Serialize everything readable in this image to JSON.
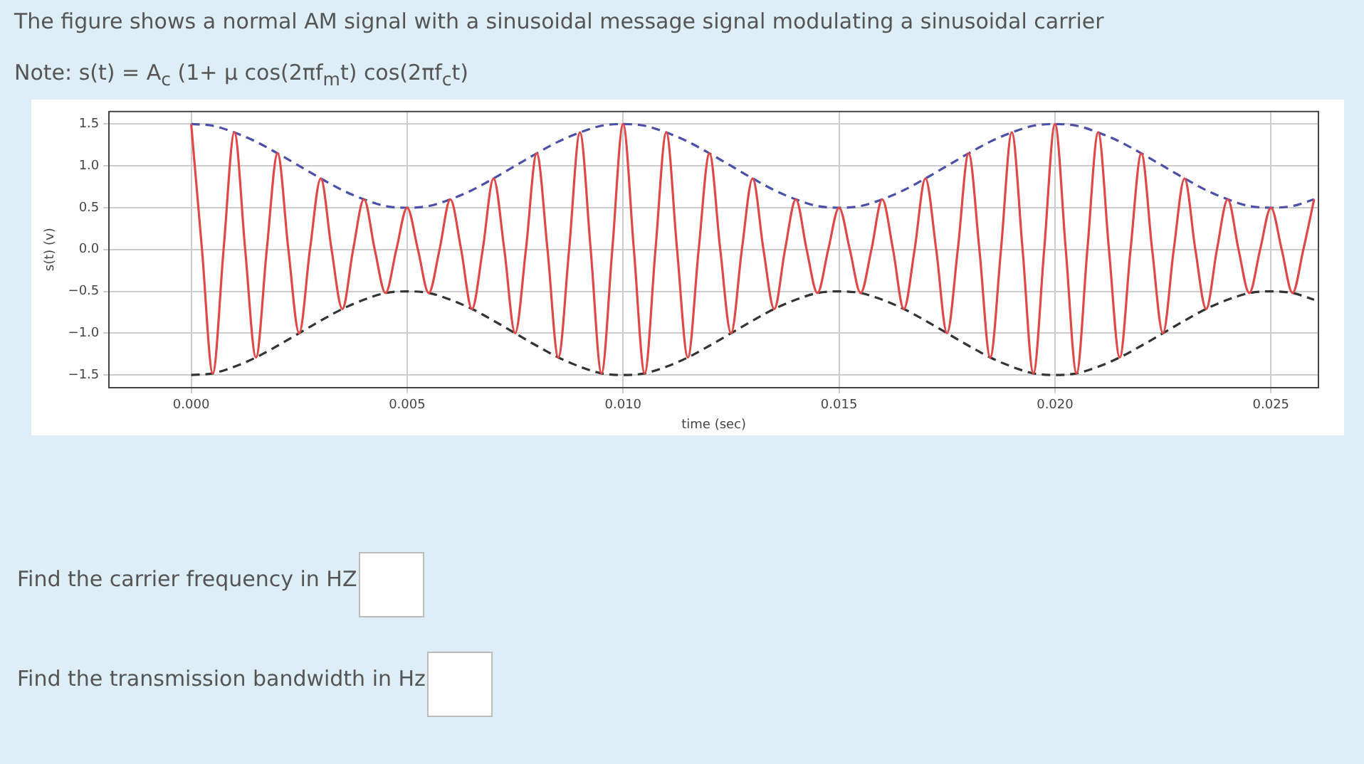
{
  "chart_data": {
    "type": "line",
    "title": "The figure shows a normal AM signal  with a sinusoidal message signal modulating a sinusoidal carrier",
    "subtitle": "Note: s(t) = A$_{c}$ (1+ μ cos(2πf$_{m}$t) cos(2πf$_{c}$t)",
    "xlabel": "time (sec)",
    "ylabel": "s(t) (v)",
    "annotations": [
      "Find the carrier frequency in HZ",
      "Find the transmission bandwidth in Hz"
    ],
    "x": [
      0,
      0.00025,
      0.0005,
      0.00075,
      0.001,
      0.00125,
      0.0015,
      0.00175,
      0.002,
      0.00225,
      0.0025,
      0.00275,
      0.003,
      0.00325,
      0.0035,
      0.00375,
      0.004,
      0.00425,
      0.0045,
      0.00475,
      0.005,
      0.00525,
      0.0055,
      0.00575,
      0.006,
      0.00625,
      0.0065,
      0.00675,
      0.007,
      0.00725,
      0.0075,
      0.00775,
      0.008,
      0.00825,
      0.0085,
      0.00875,
      0.009,
      0.00925,
      0.0095,
      0.00975,
      0.01,
      0.01025,
      0.0105,
      0.01075,
      0.011,
      0.01125,
      0.0115,
      0.01175,
      0.012,
      0.01225,
      0.0125,
      0.01275,
      0.013,
      0.01325,
      0.0135,
      0.01375,
      0.014,
      0.01425,
      0.0145,
      0.01475,
      0.015,
      0.01525,
      0.0155,
      0.01575,
      0.016,
      0.01625,
      0.0165,
      0.01675,
      0.017,
      0.01725,
      0.0175,
      0.01775,
      0.018,
      0.01825,
      0.0185,
      0.01875,
      0.019,
      0.01925,
      0.0195,
      0.01975,
      0.02,
      0.02025,
      0.0205,
      0.02075,
      0.021,
      0.02125,
      0.0215,
      0.02175,
      0.022,
      0.02225,
      0.0225,
      0.02275,
      0.023,
      0.02325,
      0.0235,
      0.02375,
      0.024,
      0.02425,
      0.0245,
      0.02475,
      0.025,
      0.02525,
      0.0255,
      0.02575,
      0.026
    ],
    "series": [
      {
        "color": "#e04848",
        "line_style": "solid",
        "values": [
          1.5,
          0,
          -1.48,
          0,
          1.4,
          0,
          -1.29,
          0,
          1.15,
          0,
          -1,
          0,
          0.85,
          0,
          -0.71,
          0,
          0.6,
          0,
          -0.52,
          0,
          0.5,
          0,
          -0.52,
          0,
          0.6,
          0,
          -0.71,
          0,
          0.85,
          0,
          -1,
          0,
          1.15,
          0,
          -1.29,
          0,
          1.4,
          0,
          -1.48,
          0,
          1.5,
          0,
          -1.48,
          0,
          1.4,
          0,
          -1.29,
          0,
          1.15,
          0,
          -1,
          0,
          0.85,
          0,
          -0.71,
          0,
          0.6,
          0,
          -0.52,
          0,
          0.5,
          0,
          -0.52,
          0,
          0.6,
          0,
          -0.71,
          0,
          0.85,
          0,
          -1,
          0,
          1.15,
          0,
          -1.29,
          0,
          1.4,
          0,
          -1.48,
          0,
          1.5,
          0,
          -1.48,
          0,
          1.4,
          0,
          -1.29,
          0,
          1.15,
          0,
          -1,
          0,
          0.85,
          0,
          -0.71,
          0,
          0.6,
          0,
          -0.52,
          0,
          0.5,
          0,
          -0.52,
          0,
          0.6
        ]
      },
      {
        "color": "#4b4fa8",
        "line_style": "dashed",
        "x": [
          0,
          0.0005,
          0.001,
          0.0015,
          0.002,
          0.0025,
          0.003,
          0.0035,
          0.004,
          0.0045,
          0.005,
          0.0055,
          0.006,
          0.0065,
          0.007,
          0.0075,
          0.008,
          0.0085,
          0.009,
          0.0095,
          0.01,
          0.0105,
          0.011,
          0.0115,
          0.012,
          0.0125,
          0.013,
          0.0135,
          0.014,
          0.0145,
          0.015,
          0.0155,
          0.016,
          0.0165,
          0.017,
          0.0175,
          0.018,
          0.0185,
          0.019,
          0.0195,
          0.02,
          0.0205,
          0.021,
          0.0215,
          0.022,
          0.0225,
          0.023,
          0.0235,
          0.024,
          0.0245,
          0.025,
          0.0255,
          0.026
        ],
        "values": [
          1.5,
          1.48,
          1.4,
          1.29,
          1.15,
          1,
          0.85,
          0.71,
          0.6,
          0.52,
          0.5,
          0.52,
          0.6,
          0.71,
          0.85,
          1,
          1.15,
          1.29,
          1.4,
          1.48,
          1.5,
          1.48,
          1.4,
          1.29,
          1.15,
          1,
          0.85,
          0.71,
          0.6,
          0.52,
          0.5,
          0.52,
          0.6,
          0.71,
          0.85,
          1,
          1.15,
          1.29,
          1.4,
          1.48,
          1.5,
          1.48,
          1.4,
          1.29,
          1.15,
          1,
          0.85,
          0.71,
          0.6,
          0.52,
          0.5,
          0.52,
          0.6
        ]
      },
      {
        "color": "#333333",
        "line_style": "dashed",
        "x": [
          0,
          0.0005,
          0.001,
          0.0015,
          0.002,
          0.0025,
          0.003,
          0.0035,
          0.004,
          0.0045,
          0.005,
          0.0055,
          0.006,
          0.0065,
          0.007,
          0.0075,
          0.008,
          0.0085,
          0.009,
          0.0095,
          0.01,
          0.0105,
          0.011,
          0.0115,
          0.012,
          0.0125,
          0.013,
          0.0135,
          0.014,
          0.0145,
          0.015,
          0.0155,
          0.016,
          0.0165,
          0.017,
          0.0175,
          0.018,
          0.0185,
          0.019,
          0.0195,
          0.02,
          0.0205,
          0.021,
          0.0215,
          0.022,
          0.0225,
          0.023,
          0.0235,
          0.024,
          0.0245,
          0.025,
          0.0255,
          0.026
        ],
        "values": [
          -1.5,
          -1.48,
          -1.4,
          -1.29,
          -1.15,
          -1,
          -0.85,
          -0.71,
          -0.6,
          -0.52,
          -0.5,
          -0.52,
          -0.6,
          -0.71,
          -0.85,
          -1,
          -1.15,
          -1.29,
          -1.4,
          -1.48,
          -1.5,
          -1.48,
          -1.4,
          -1.29,
          -1.15,
          -1,
          -0.85,
          -0.71,
          -0.6,
          -0.52,
          -0.5,
          -0.52,
          -0.6,
          -0.71,
          -0.85,
          -1,
          -1.15,
          -1.29,
          -1.4,
          -1.48,
          -1.5,
          -1.48,
          -1.4,
          -1.29,
          -1.15,
          -1,
          -0.85,
          -0.71,
          -0.6,
          -0.52,
          -0.5,
          -0.52,
          -0.6
        ]
      }
    ],
    "xlim": [
      -0.0019,
      0.0261
    ],
    "xticks": [
      {
        "value": 0,
        "label": "0.000"
      },
      {
        "value": 0.005,
        "label": "0.005"
      },
      {
        "value": 0.01,
        "label": "0.010"
      },
      {
        "value": 0.015,
        "label": "0.015"
      },
      {
        "value": 0.02,
        "label": "0.020"
      },
      {
        "value": 0.025,
        "label": "0.025"
      }
    ],
    "ylim": [
      -1.65,
      1.65
    ],
    "yticks": [
      {
        "value": -1.5,
        "label": "−1.5"
      },
      {
        "value": -1,
        "label": "−1.0"
      },
      {
        "value": -0.5,
        "label": "−0.5"
      },
      {
        "value": 0,
        "label": "0.0"
      },
      {
        "value": 0.5,
        "label": "0.5"
      },
      {
        "value": 1,
        "label": "1.0"
      },
      {
        "value": 1.5,
        "label": "1.5"
      }
    ],
    "grid": true,
    "legend": false,
    "marker": "none"
  }
}
